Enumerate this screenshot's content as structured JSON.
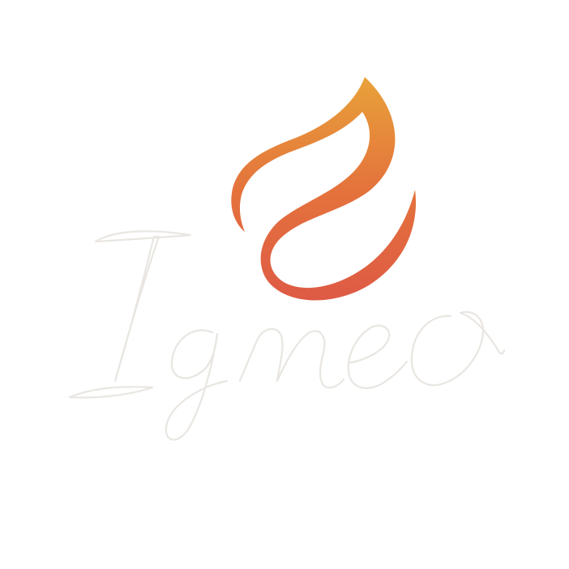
{
  "logo": {
    "wordmark": "Igneo",
    "icon": "flame-icon",
    "colors": {
      "flame_top": "#e8a23a",
      "flame_mid": "#e4733c",
      "flame_bottom": "#de5a45",
      "wordmark_stroke": "#e9e6e2",
      "background": "#ffffff"
    }
  }
}
